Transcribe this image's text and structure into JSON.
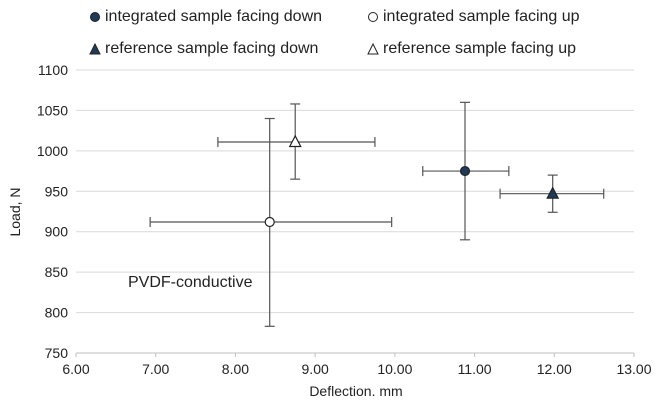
{
  "chart_data": {
    "type": "scatter",
    "xlabel": "Deflection. mm",
    "ylabel": "Load, N",
    "xlim": [
      6.0,
      13.0
    ],
    "ylim": [
      750,
      1100
    ],
    "xticks": [
      "6.00",
      "7.00",
      "8.00",
      "9.00",
      "10.00",
      "11.00",
      "12.00",
      "13.00"
    ],
    "yticks": [
      "750",
      "800",
      "850",
      "900",
      "950",
      "1000",
      "1050",
      "1100"
    ],
    "grid": "horizontal",
    "legend_position": "top",
    "annotation": "PVDF-conductive",
    "colors": {
      "filled": "#1f3b57",
      "open": "#ffffff",
      "edge": "#222222",
      "error": "#555555",
      "grid": "#d9d9d9"
    },
    "series": [
      {
        "name": "integrated sample facing down",
        "marker": "circle",
        "fill": "filled",
        "x": 10.88,
        "y": 975,
        "xerr": [
          10.35,
          11.43
        ],
        "yerr": [
          890,
          1060
        ]
      },
      {
        "name": "integrated sample facing up",
        "marker": "circle",
        "fill": "open",
        "x": 8.43,
        "y": 912,
        "xerr": [
          6.93,
          9.96
        ],
        "yerr": [
          783,
          1040
        ]
      },
      {
        "name": "reference sample facing down",
        "marker": "triangle",
        "fill": "filled",
        "x": 11.98,
        "y": 947,
        "xerr": [
          11.32,
          12.62
        ],
        "yerr": [
          924,
          970
        ]
      },
      {
        "name": "reference sample facing up",
        "marker": "triangle",
        "fill": "open",
        "x": 8.75,
        "y": 1011,
        "xerr": [
          7.78,
          9.75
        ],
        "yerr": [
          965,
          1058
        ]
      }
    ]
  }
}
